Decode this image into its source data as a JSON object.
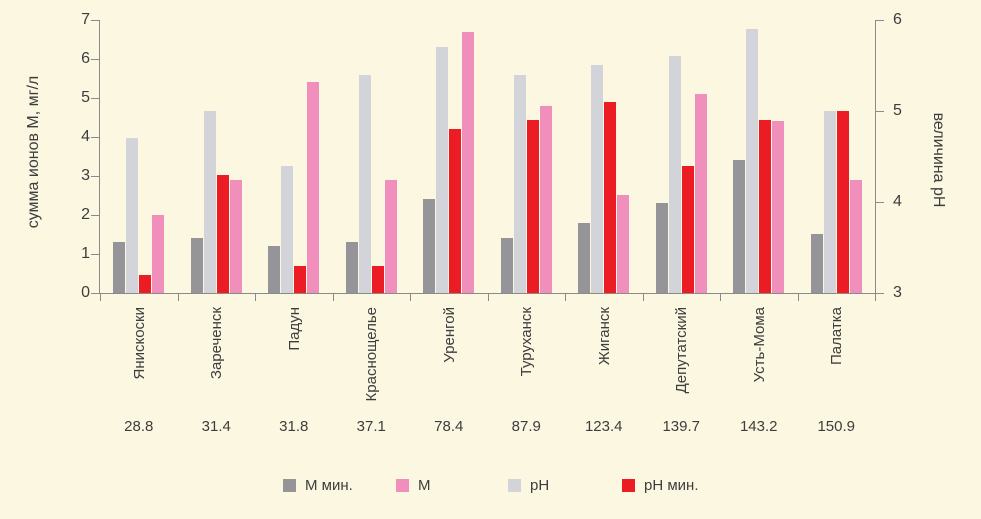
{
  "chart_data": {
    "type": "bar",
    "title": "",
    "categories": [
      "Янискоски",
      "Зареченск",
      "Падун",
      "Краснощелье",
      "Уренгой",
      "Туруханск",
      "Жиганск",
      "Депутатский",
      "Усть-Мома",
      "Палатка"
    ],
    "category_values_row": [
      "28.8",
      "31.4",
      "31.8",
      "37.1",
      "78.4",
      "87.9",
      "123.4",
      "139.7",
      "143.2",
      "150.9"
    ],
    "left_axis": {
      "label": "сумма ионов М, мг/л",
      "min": 0,
      "max": 7,
      "ticks": [
        0,
        1,
        2,
        3,
        4,
        5,
        6,
        7
      ]
    },
    "right_axis": {
      "label": "величина pH",
      "min": 3,
      "max": 6,
      "ticks": [
        3,
        4,
        5,
        6
      ]
    },
    "grid": false,
    "legend_position": "bottom",
    "series": [
      {
        "name": "М мин.",
        "axis": "left",
        "color": "#949499",
        "values": [
          1.3,
          1.4,
          1.2,
          1.3,
          2.4,
          1.4,
          1.8,
          2.3,
          3.4,
          1.5
        ]
      },
      {
        "name": "pH",
        "axis": "right",
        "color": "#d3d4d9",
        "values": [
          4.7,
          5.0,
          4.4,
          5.4,
          5.7,
          5.4,
          5.5,
          5.6,
          5.9,
          5.0
        ]
      },
      {
        "name": "pH мин.",
        "axis": "right",
        "color": "#ec1c24",
        "values": [
          3.2,
          4.3,
          3.3,
          3.3,
          4.8,
          4.9,
          5.1,
          4.4,
          4.9,
          5.0
        ]
      },
      {
        "name": "М",
        "axis": "left",
        "color": "#f08ebc",
        "values": [
          2.0,
          2.9,
          5.4,
          2.9,
          6.7,
          4.8,
          2.5,
          5.1,
          4.4,
          2.9
        ]
      }
    ],
    "legend": [
      {
        "label": "М мин.",
        "color": "#949499"
      },
      {
        "label": "М",
        "color": "#f08ebc"
      },
      {
        "label": "pH",
        "color": "#d3d4d9"
      },
      {
        "label": "pH мин.",
        "color": "#ec1c24"
      }
    ]
  },
  "colors": {
    "background": "#fbf7e1",
    "axis": "#8a8a8a",
    "text": "#3d3d3d"
  }
}
